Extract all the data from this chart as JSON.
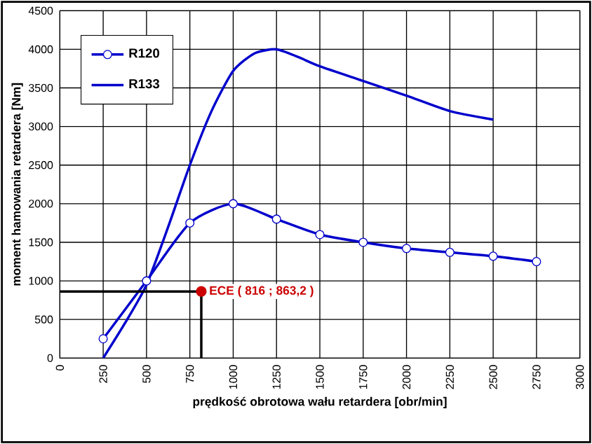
{
  "chart_data": {
    "type": "line",
    "xlabel": "prędkość obrotowa wału retardera [obr/min]",
    "ylabel": "moment hamowania retardera [Nm]",
    "xlim": [
      0,
      3000
    ],
    "xticks": [
      0,
      250,
      500,
      750,
      1000,
      1250,
      1500,
      1750,
      2000,
      2250,
      2500,
      2750,
      3000
    ],
    "ylim": [
      0,
      4500
    ],
    "yticks": [
      0,
      500,
      1000,
      1500,
      2000,
      2500,
      3000,
      3500,
      4000,
      4500
    ],
    "grid": true,
    "legend": "top left",
    "series": [
      {
        "name": "R120",
        "color": "#0000cc",
        "marker": "circle",
        "x": [
          250,
          500,
          750,
          1000,
          1250,
          1500,
          1750,
          2000,
          2250,
          2500,
          2750
        ],
        "values": [
          250,
          1000,
          1750,
          2000,
          1800,
          1600,
          1500,
          1420,
          1370,
          1320,
          1250
        ]
      },
      {
        "name": "R133",
        "color": "#0000cc",
        "marker": "none",
        "x": [
          250,
          375,
          500,
          625,
          750,
          875,
          1000,
          1125,
          1250,
          1375,
          1500,
          1750,
          2000,
          2250,
          2500
        ],
        "values": [
          0,
          450,
          950,
          1700,
          2500,
          3200,
          3720,
          3950,
          4000,
          3900,
          3780,
          3590,
          3400,
          3200,
          3090
        ]
      },
      {
        "type": "line",
        "color": "#000000",
        "marker": "none",
        "x": [
          0,
          816,
          816
        ],
        "values": [
          863.2,
          863.2,
          0
        ]
      },
      {
        "type": "scatter",
        "color": "#cc0000",
        "marker": "circle",
        "x": [
          816
        ],
        "values": [
          863.2
        ]
      }
    ],
    "annotations": [
      {
        "text": "ECE ( 816 ; 863,2 )",
        "x": 816,
        "y": 863.2
      }
    ]
  }
}
